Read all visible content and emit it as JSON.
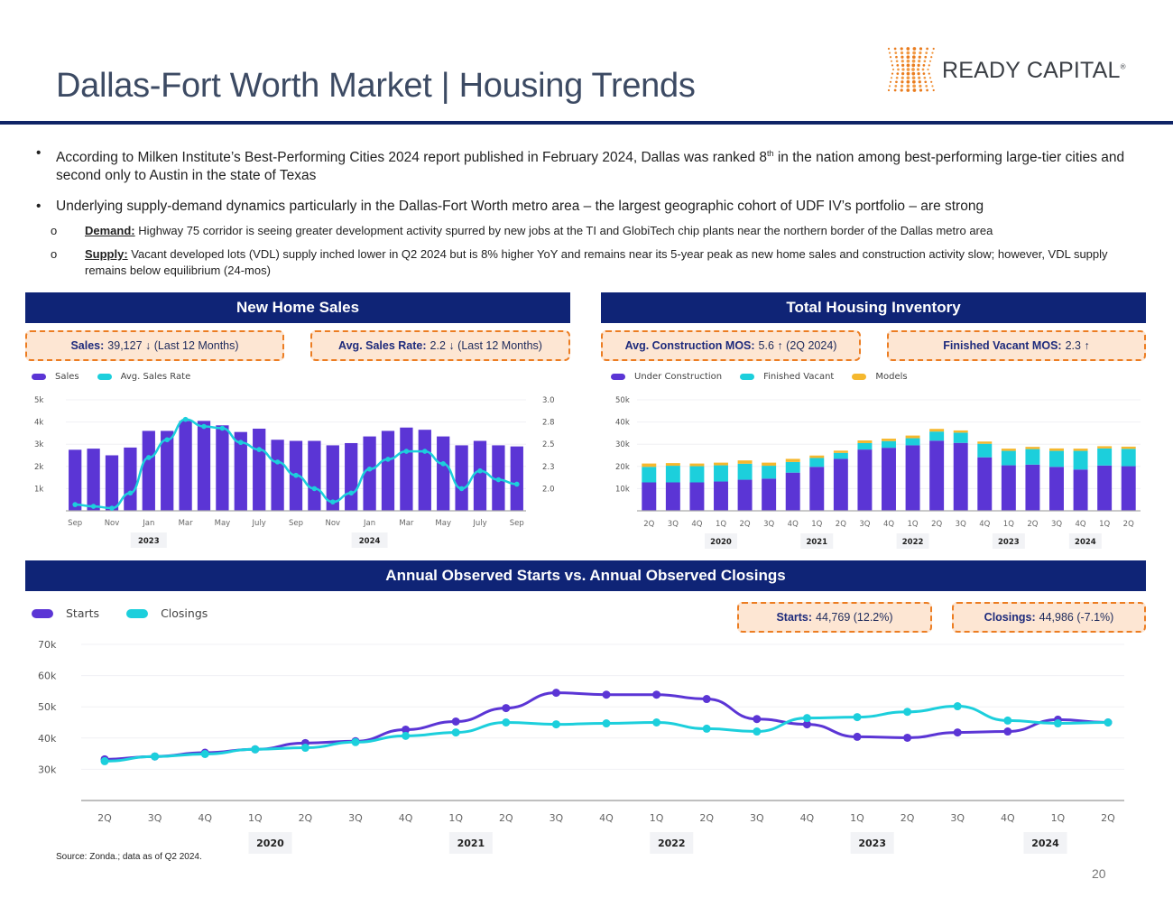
{
  "header": {
    "title": "Dallas-Fort Worth Market | Housing Trends",
    "logo_text": "READY CAPITAL",
    "logo_mark": "®",
    "logo_icon": "dot-grid-icon"
  },
  "bullets": [
    {
      "text_before": "According to Milken Institute’s Best-Performing Cities 2024 report published in February 2024, Dallas was ranked 8",
      "sup": "th",
      "text_after": " in the nation among best-performing large-tier cities and second only to Austin in the state of Texas"
    },
    {
      "text": "Underlying supply-demand dynamics particularly in the Dallas-Fort Worth metro area – the largest geographic cohort of UDF IV’s portfolio – are strong"
    }
  ],
  "sub_bullets": [
    {
      "label": "Demand:",
      "text": " Highway 75 corridor is seeing greater development activity spurred by new jobs at the TI and GlobiTech chip plants near the northern border of the Dallas metro area"
    },
    {
      "label": "Supply:",
      "text": " Vacant developed lots (VDL) supply inched lower in Q2 2024 but is 8% higher YoY and remains near its 5-year peak as new home sales and construction activity slow; however, VDL supply remains below equilibrium (24-mos)"
    }
  ],
  "panels": {
    "sales": {
      "title": "New Home Sales",
      "kpis": [
        {
          "label": "Sales:",
          "value": "39,127",
          "arrow": "↓",
          "suffix": "(Last 12 Months)"
        },
        {
          "label": "Avg. Sales Rate:",
          "value": "2.2",
          "arrow": "↓",
          "suffix": "(Last 12 Months)"
        }
      ]
    },
    "inventory": {
      "title": "Total Housing Inventory",
      "kpis": [
        {
          "label": "Avg. Construction MOS:",
          "value": "5.6",
          "arrow": "↑",
          "suffix": "(2Q 2024)"
        },
        {
          "label": "Finished Vacant MOS:",
          "value": "2.3",
          "arrow": "↑",
          "suffix": ""
        }
      ]
    },
    "starts": {
      "title": "Annual Observed Starts vs. Annual Observed Closings",
      "kpis": [
        {
          "label": "Starts:",
          "value": "44,769 (12.2%)"
        },
        {
          "label": "Closings:",
          "value": "44,986 (-7.1%)"
        }
      ]
    }
  },
  "colors": {
    "purple": "#5b35d5",
    "cyan": "#1ccfdc",
    "gold": "#f5b82e",
    "navy": "#0f2476",
    "kpi_border": "#ec7d22",
    "kpi_fill": "#fde6d3"
  },
  "chart_data": [
    {
      "type": "bar",
      "title": "New Home Sales",
      "legend": [
        "Sales",
        "Avg. Sales Rate"
      ],
      "legend_position": "top-left",
      "x_tick_labels": [
        "Sep",
        "Nov",
        "Jan",
        "Mar",
        "May",
        "July",
        "Sep",
        "Nov",
        "Jan",
        "Mar",
        "May",
        "July",
        "Sep"
      ],
      "year_labels": [
        {
          "label": "2023",
          "at_index": 4
        },
        {
          "label": "2024",
          "at_index": 16
        }
      ],
      "y_left": {
        "ticks": [
          "1k",
          "2k",
          "3k",
          "4k",
          "5k"
        ],
        "range": [
          0,
          5000
        ]
      },
      "y_right": {
        "ticks": [
          "2.0",
          "2.3",
          "2.5",
          "2.8",
          "3.0"
        ],
        "range": [
          1.75,
          3.0
        ]
      },
      "series": [
        {
          "name": "Sales",
          "type": "bar",
          "axis": "left",
          "values": [
            2750,
            2800,
            2500,
            2850,
            3600,
            3600,
            4050,
            4050,
            3850,
            3550,
            3700,
            3200,
            3150,
            3150,
            2950,
            3050,
            3350,
            3600,
            3750,
            3650,
            3350,
            2950,
            3150,
            2950,
            2900
          ]
        },
        {
          "name": "Avg. Sales Rate",
          "type": "line",
          "axis": "right",
          "values": [
            1.82,
            1.8,
            1.78,
            1.95,
            2.35,
            2.55,
            2.78,
            2.7,
            2.68,
            2.52,
            2.44,
            2.3,
            2.15,
            2.0,
            1.85,
            1.95,
            2.22,
            2.33,
            2.42,
            2.42,
            2.28,
            2.0,
            2.2,
            2.1,
            2.05
          ]
        }
      ]
    },
    {
      "type": "bar",
      "stacked": true,
      "title": "Total Housing Inventory",
      "legend": [
        "Under Construction",
        "Finished Vacant",
        "Models"
      ],
      "legend_position": "top-left",
      "categories": [
        "2Q",
        "3Q",
        "4Q",
        "1Q",
        "2Q",
        "3Q",
        "4Q",
        "1Q",
        "2Q",
        "3Q",
        "4Q",
        "1Q",
        "2Q",
        "3Q",
        "4Q",
        "1Q",
        "2Q",
        "3Q",
        "4Q",
        "1Q",
        "2Q"
      ],
      "year_labels": [
        {
          "label": "2020",
          "at_index": 3.5
        },
        {
          "label": "2021",
          "at_index": 7.5
        },
        {
          "label": "2022",
          "at_index": 11.5
        },
        {
          "label": "2023",
          "at_index": 15.5
        },
        {
          "label": "2024",
          "at_index": 18.7
        }
      ],
      "y": {
        "ticks": [
          "10k",
          "20k",
          "30k",
          "40k",
          "50k"
        ],
        "range": [
          0,
          50000
        ]
      },
      "series": [
        {
          "name": "Under Construction",
          "values": [
            12800,
            12800,
            12800,
            13200,
            14000,
            14500,
            17200,
            19800,
            23400,
            27600,
            28400,
            29500,
            31600,
            30600,
            24100,
            20500,
            20800,
            19800,
            18600,
            20400,
            20100
          ]
        },
        {
          "name": "Finished Vacant",
          "values": [
            7000,
            7500,
            7300,
            7300,
            7200,
            5800,
            4800,
            4000,
            2700,
            2900,
            3000,
            3200,
            4100,
            4600,
            6100,
            6500,
            7000,
            7200,
            8400,
            7700,
            7800
          ]
        },
        {
          "name": "Models",
          "values": [
            1500,
            1200,
            1200,
            1200,
            1500,
            1400,
            1400,
            1100,
            1000,
            1200,
            1100,
            1200,
            1200,
            1000,
            1000,
            1000,
            1000,
            1100,
            1000,
            1000,
            1000
          ]
        }
      ]
    },
    {
      "type": "line",
      "title": "Annual Observed Starts vs. Annual Observed Closings",
      "legend": [
        "Starts",
        "Closings"
      ],
      "legend_position": "top-left",
      "categories": [
        "2Q",
        "3Q",
        "4Q",
        "1Q",
        "2Q",
        "3Q",
        "4Q",
        "1Q",
        "2Q",
        "3Q",
        "4Q",
        "1Q",
        "2Q",
        "3Q",
        "4Q",
        "1Q",
        "2Q",
        "3Q",
        "4Q",
        "1Q",
        "2Q"
      ],
      "year_labels": [
        {
          "label": "2020",
          "at_index": 3.3
        },
        {
          "label": "2021",
          "at_index": 7.3
        },
        {
          "label": "2022",
          "at_index": 11.3
        },
        {
          "label": "2023",
          "at_index": 15.3
        },
        {
          "label": "2024",
          "at_index": 18.75
        }
      ],
      "y": {
        "ticks": [
          "30k",
          "40k",
          "50k",
          "60k",
          "70k"
        ],
        "range": [
          20000,
          70000
        ]
      },
      "series": [
        {
          "name": "Starts",
          "values": [
            33200,
            34100,
            35300,
            36400,
            38400,
            39000,
            42700,
            45300,
            49600,
            54500,
            53900,
            53900,
            52500,
            46100,
            44400,
            40400,
            40100,
            41800,
            42100,
            45900,
            45000
          ]
        },
        {
          "name": "Closings",
          "values": [
            32600,
            34100,
            34900,
            36400,
            36900,
            38700,
            40700,
            41800,
            45000,
            44400,
            44700,
            45000,
            43000,
            42100,
            46400,
            46700,
            48400,
            50200,
            45600,
            44700,
            45000
          ]
        }
      ]
    }
  ],
  "footer": {
    "source": "Source: Zonda.; data as of Q2 2024.",
    "page_number": "20"
  }
}
